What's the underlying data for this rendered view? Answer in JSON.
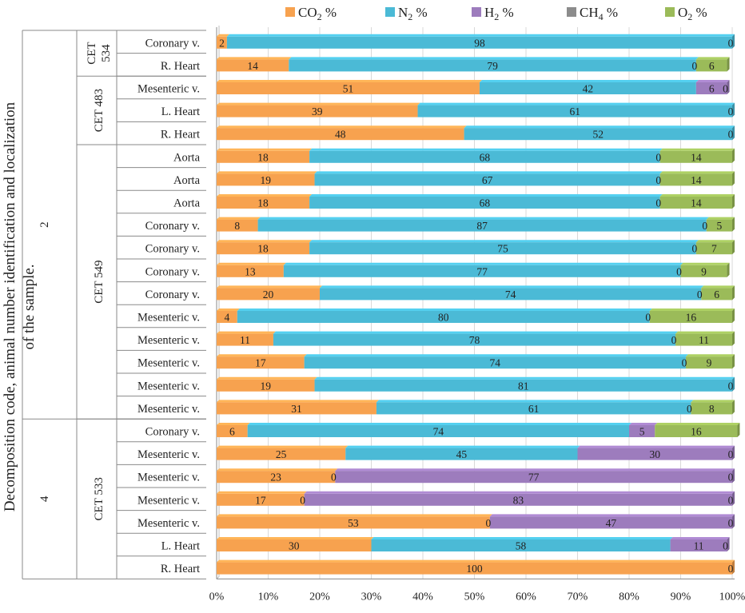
{
  "chart_data": {
    "type": "bar",
    "orientation": "horizontal",
    "stacked": "percent",
    "title": "",
    "xlabel": "",
    "ylabel_lines": [
      "Decomposition code, animal number identification and localization",
      "of the sample."
    ],
    "xlim": [
      0,
      100
    ],
    "x_ticks": [
      "0%",
      "10%",
      "20%",
      "30%",
      "40%",
      "50%",
      "60%",
      "70%",
      "80%",
      "90%",
      "100%"
    ],
    "legend_position": "top",
    "series": [
      {
        "name": "CO2 %",
        "label_main": "CO",
        "label_sub": "2",
        "label_suffix": " %",
        "color": "#f7a24f"
      },
      {
        "name": "N2 %",
        "label_main": "N",
        "label_sub": "2",
        "label_suffix": " %",
        "color": "#4bbad6"
      },
      {
        "name": "H2 %",
        "label_main": "H",
        "label_sub": "2",
        "label_suffix": " %",
        "color": "#9d7cbd"
      },
      {
        "name": "CH4 %",
        "label_main": "CH",
        "label_sub": "4",
        "label_suffix": " %",
        "color": "#8c8c8c"
      },
      {
        "name": "O2 %",
        "label_main": "O",
        "label_sub": "2",
        "label_suffix": " %",
        "color": "#9bbb59"
      }
    ],
    "categories": [
      {
        "label": "Coronary v.",
        "values": [
          2,
          98,
          0,
          0,
          0
        ],
        "labels": [
          "2",
          "98",
          "",
          "",
          "0"
        ]
      },
      {
        "label": "R. Heart",
        "values": [
          14,
          79,
          0,
          0,
          6
        ],
        "labels": [
          "14",
          "79",
          "",
          "0",
          "6"
        ]
      },
      {
        "label": "Mesenteric v.",
        "values": [
          51,
          42,
          6,
          0,
          0
        ],
        "labels": [
          "51",
          "42",
          "6",
          "",
          "0"
        ]
      },
      {
        "label": "L. Heart",
        "values": [
          39,
          61,
          0,
          0,
          0
        ],
        "labels": [
          "39",
          "61",
          "",
          "",
          "0"
        ]
      },
      {
        "label": "R. Heart",
        "values": [
          48,
          52,
          0,
          0,
          0
        ],
        "labels": [
          "48",
          "52",
          "",
          "",
          "0"
        ]
      },
      {
        "label": "Aorta",
        "values": [
          18,
          68,
          0,
          0,
          14
        ],
        "labels": [
          "18",
          "68",
          "",
          "0",
          "14"
        ]
      },
      {
        "label": "Aorta",
        "values": [
          19,
          67,
          0,
          0,
          14
        ],
        "labels": [
          "19",
          "67",
          "",
          "0",
          "14"
        ]
      },
      {
        "label": "Aorta",
        "values": [
          18,
          68,
          0,
          0,
          14
        ],
        "labels": [
          "18",
          "68",
          "",
          "0",
          "14"
        ]
      },
      {
        "label": "Coronary v.",
        "values": [
          8,
          87,
          0,
          0,
          5
        ],
        "labels": [
          "8",
          "87",
          "",
          "0",
          "5"
        ]
      },
      {
        "label": "Coronary v.",
        "values": [
          18,
          75,
          0,
          0,
          7
        ],
        "labels": [
          "18",
          "75",
          "",
          "0",
          "7"
        ]
      },
      {
        "label": "Coronary v.",
        "values": [
          13,
          77,
          0,
          0,
          9
        ],
        "labels": [
          "13",
          "77",
          "",
          "0",
          "9"
        ]
      },
      {
        "label": "Coronary v.",
        "values": [
          20,
          74,
          0,
          0,
          6
        ],
        "labels": [
          "20",
          "74",
          "",
          "0",
          "6"
        ]
      },
      {
        "label": "Mesenteric v.",
        "values": [
          4,
          80,
          0,
          0,
          16
        ],
        "labels": [
          "4",
          "80",
          "",
          "0",
          "16"
        ]
      },
      {
        "label": "Mesenteric v.",
        "values": [
          11,
          78,
          0,
          0,
          11
        ],
        "labels": [
          "11",
          "78",
          "",
          "0",
          "11"
        ]
      },
      {
        "label": "Mesenteric v.",
        "values": [
          17,
          74,
          0,
          0,
          9
        ],
        "labels": [
          "17",
          "74",
          "",
          "0",
          "9"
        ]
      },
      {
        "label": "Mesenteric v.",
        "values": [
          19,
          81,
          0,
          0,
          0
        ],
        "labels": [
          "19",
          "81",
          "",
          "",
          "0"
        ]
      },
      {
        "label": "Mesenteric v.",
        "values": [
          31,
          61,
          0,
          0,
          8
        ],
        "labels": [
          "31",
          "61",
          "",
          "0",
          "8"
        ]
      },
      {
        "label": "Coronary v.",
        "values": [
          6,
          74,
          5,
          0,
          16
        ],
        "labels": [
          "6",
          "74",
          "5",
          "",
          "16"
        ]
      },
      {
        "label": "Mesenteric v.",
        "values": [
          25,
          45,
          30,
          0,
          0
        ],
        "labels": [
          "25",
          "45",
          "30",
          "",
          "0"
        ]
      },
      {
        "label": "Mesenteric v.",
        "values": [
          23,
          0,
          77,
          0,
          0
        ],
        "labels": [
          "23",
          "0",
          "77",
          "",
          "0"
        ]
      },
      {
        "label": "Mesenteric v.",
        "values": [
          17,
          0,
          83,
          0,
          0
        ],
        "labels": [
          "17",
          "0",
          "83",
          "",
          "0"
        ]
      },
      {
        "label": "Mesenteric v.",
        "values": [
          53,
          0,
          47,
          0,
          0
        ],
        "labels": [
          "53",
          "0",
          "47",
          "",
          "0"
        ]
      },
      {
        "label": "L. Heart",
        "values": [
          30,
          58,
          11,
          0,
          0
        ],
        "labels": [
          "30",
          "58",
          "11",
          "",
          "0"
        ]
      },
      {
        "label": "R. Heart",
        "values": [
          100,
          0,
          0,
          0,
          0
        ],
        "labels": [
          "100",
          "",
          "",
          "",
          "0"
        ]
      }
    ],
    "animal_groups": [
      {
        "label": "CET 534",
        "label_lines": [
          "CET",
          "534"
        ],
        "start": 0,
        "end": 1
      },
      {
        "label": "CET 483",
        "label_lines": [
          "CET 483"
        ],
        "start": 2,
        "end": 4
      },
      {
        "label": "CET 549",
        "label_lines": [
          "CET 549"
        ],
        "start": 5,
        "end": 16
      },
      {
        "label": "CET 533",
        "label_lines": [
          "CET 533"
        ],
        "start": 17,
        "end": 23
      }
    ],
    "decomposition_groups": [
      {
        "label": "2",
        "start": 0,
        "end": 16
      },
      {
        "label": "4",
        "start": 17,
        "end": 23
      }
    ]
  }
}
